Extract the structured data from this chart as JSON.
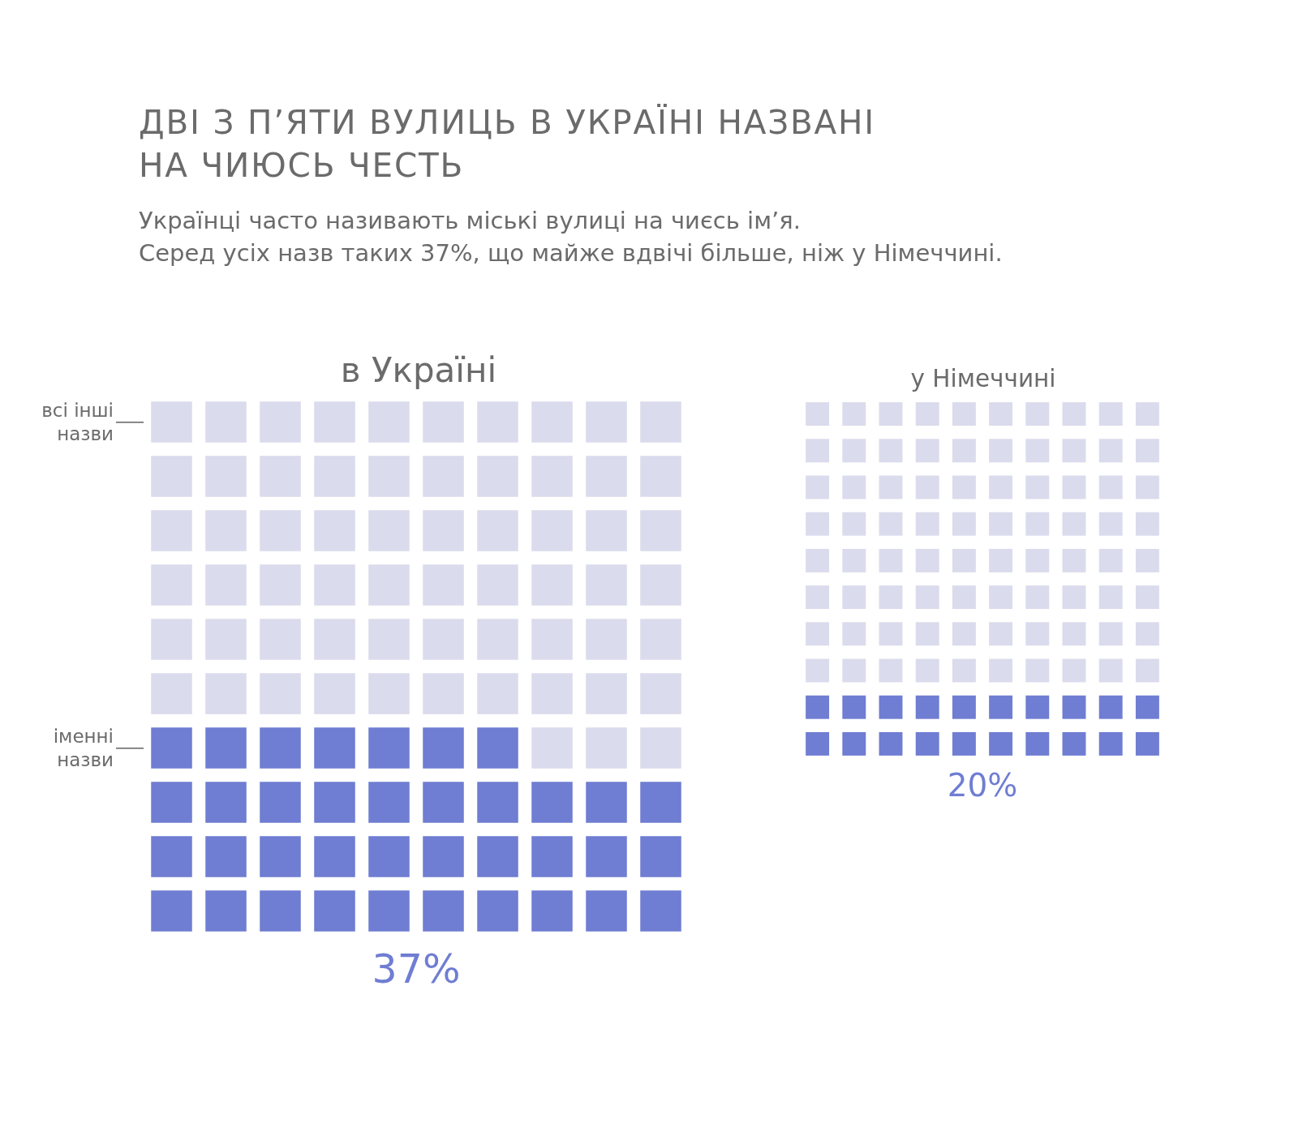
{
  "chart_data": [
    {
      "type": "other",
      "title": "ДВІ З П’ЯТИ ВУЛИЦЬ В УКРАЇНІ НАЗВАНІ\nНА ЧИЮСЬ ЧЕСТЬ",
      "subtitle": "Українці часто називають міські вулиці на чиєсь ім’я.\nСеред усіх назв таких 37%, що майже вдвічі більше, ніж у Німеччині."
    },
    {
      "type": "other",
      "title": "в Україні",
      "categories": [
        "всі інші назви",
        "іменні назви"
      ],
      "values": [
        null,
        37
      ],
      "colors": [
        "#dadbec",
        "#6f7dd2"
      ],
      "value_labels": [
        null,
        "37%"
      ]
    },
    {
      "type": "other",
      "title": "у Німеччині",
      "categories": [
        null,
        null
      ],
      "values": [
        null,
        20
      ],
      "colors": [
        "#dadbec",
        "#6f7dd2"
      ],
      "value_labels": [
        null,
        "20%"
      ]
    }
  ]
}
